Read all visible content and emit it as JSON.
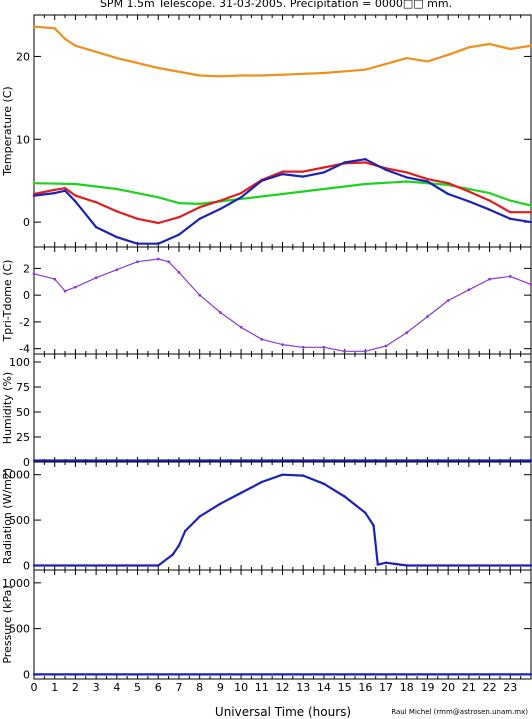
{
  "title": "SPM 1.5m Telescope. 31-03-2005. Precipitation = 0000□□ mm.",
  "credit": "Raul Michel (rmm@astrosen.unam.mx)",
  "colors": {
    "orange": "#f0901c",
    "red": "#dd1f1f",
    "green": "#1fd21f",
    "blue": "#1c22b4",
    "purple": "#8a3ad0"
  },
  "chart_data": [
    {
      "type": "line",
      "ylabel": "Temperature (C)",
      "yticks": [
        0,
        10,
        20
      ],
      "ylim": [
        -3,
        25
      ],
      "xlim": [
        0,
        24
      ],
      "series": [
        {
          "color_key": "orange",
          "x": [
            0,
            1,
            1.5,
            2,
            4,
            6,
            8,
            9,
            10,
            11,
            12,
            14,
            16,
            18,
            19,
            20,
            21,
            22,
            23,
            24
          ],
          "y": [
            23.6,
            23.4,
            22.1,
            21.3,
            19.8,
            18.6,
            17.7,
            17.6,
            17.7,
            17.7,
            17.8,
            18,
            18.4,
            19.8,
            19.4,
            20.2,
            21.1,
            21.5,
            20.9,
            21.3
          ]
        },
        {
          "color_key": "green",
          "x": [
            0,
            2,
            4,
            6,
            7,
            8,
            10,
            12,
            14,
            16,
            18,
            20,
            22,
            23,
            24
          ],
          "y": [
            4.7,
            4.6,
            4,
            3,
            2.3,
            2.2,
            2.8,
            3.4,
            4,
            4.6,
            4.9,
            4.5,
            3.5,
            2.6,
            2
          ]
        },
        {
          "color_key": "red",
          "x": [
            0,
            1,
            1.5,
            2,
            3,
            4,
            5,
            6,
            7,
            8,
            9,
            10,
            11,
            12,
            13,
            14,
            15,
            16,
            17,
            18,
            19,
            20,
            21,
            22,
            23,
            24
          ],
          "y": [
            3.4,
            3.9,
            4.1,
            3.2,
            2.4,
            1.3,
            0.4,
            -0.1,
            0.6,
            1.8,
            2.6,
            3.5,
            5.1,
            6.1,
            6.1,
            6.6,
            7.1,
            7.2,
            6.5,
            6,
            5.2,
            4.7,
            3.7,
            2.6,
            1.2,
            1.2
          ]
        },
        {
          "color_key": "blue",
          "x": [
            0,
            1,
            1.5,
            2,
            3,
            4,
            5,
            6,
            7,
            8,
            9,
            10,
            11,
            12,
            13,
            14,
            15,
            16,
            17,
            18,
            19,
            20,
            21,
            22,
            23,
            24
          ],
          "y": [
            3.2,
            3.5,
            3.8,
            2.5,
            -0.6,
            -1.8,
            -2.6,
            -2.6,
            -1.5,
            0.4,
            1.6,
            3,
            5,
            5.8,
            5.5,
            6,
            7.2,
            7.6,
            6.3,
            5.4,
            4.9,
            3.4,
            2.5,
            1.5,
            0.4,
            0
          ]
        }
      ]
    },
    {
      "type": "scatter",
      "ylabel": "Tpri-Tdome (C)",
      "yticks": [
        -4,
        -2,
        0,
        2
      ],
      "ylim": [
        -4.4,
        3.6
      ],
      "xlim": [
        0,
        24
      ],
      "series": [
        {
          "color_key": "purple",
          "x": [
            0,
            1,
            1.5,
            2,
            3,
            4,
            5,
            6,
            6.5,
            7,
            8,
            9,
            10,
            11,
            12,
            13,
            14,
            15,
            16,
            17,
            18,
            19,
            20,
            21,
            22,
            23,
            24
          ],
          "y": [
            1.6,
            1.2,
            0.3,
            0.6,
            1.3,
            1.9,
            2.5,
            2.7,
            2.5,
            1.7,
            0,
            -1.3,
            -2.4,
            -3.3,
            -3.7,
            -3.9,
            -3.9,
            -4.2,
            -4.2,
            -3.8,
            -2.8,
            -1.6,
            -0.4,
            0.4,
            1.2,
            1.4,
            0.8
          ]
        }
      ]
    },
    {
      "type": "line",
      "ylabel": "Humidity (%)",
      "yticks": [
        0,
        25,
        50,
        75,
        100
      ],
      "ylim": [
        0,
        108
      ],
      "xlim": [
        0,
        24
      ],
      "series": [
        {
          "color_key": "blue",
          "x": [
            0,
            24
          ],
          "y": [
            1.5,
            1.5
          ]
        }
      ]
    },
    {
      "type": "line",
      "ylabel": "Radiation (W/m2)",
      "yticks": [
        0,
        500,
        1000
      ],
      "ylim": [
        -50,
        1140
      ],
      "xlim": [
        0,
        24
      ],
      "series": [
        {
          "color_key": "blue",
          "x": [
            0,
            6,
            6.7,
            7,
            7.3,
            8,
            9,
            10,
            11,
            12,
            13,
            14,
            15,
            16,
            16.4,
            16.6,
            17,
            17.5,
            18,
            24
          ],
          "y": [
            0,
            0,
            120,
            220,
            380,
            540,
            680,
            800,
            920,
            1000,
            990,
            900,
            760,
            580,
            440,
            10,
            30,
            15,
            0,
            0
          ]
        }
      ]
    },
    {
      "type": "line",
      "ylabel": "Pressure (kPa)",
      "yticks": [
        0,
        500,
        1000
      ],
      "ylim": [
        -50,
        1140
      ],
      "xlim": [
        0,
        24
      ],
      "series": [
        {
          "color_key": "blue",
          "x": [
            0,
            24
          ],
          "y": [
            0,
            0
          ]
        }
      ]
    }
  ],
  "xaxis": {
    "label": "Universal Time (hours)",
    "ticks": [
      0,
      1,
      2,
      3,
      4,
      5,
      6,
      7,
      8,
      9,
      10,
      11,
      12,
      13,
      14,
      15,
      16,
      17,
      18,
      19,
      20,
      21,
      22,
      23
    ]
  }
}
